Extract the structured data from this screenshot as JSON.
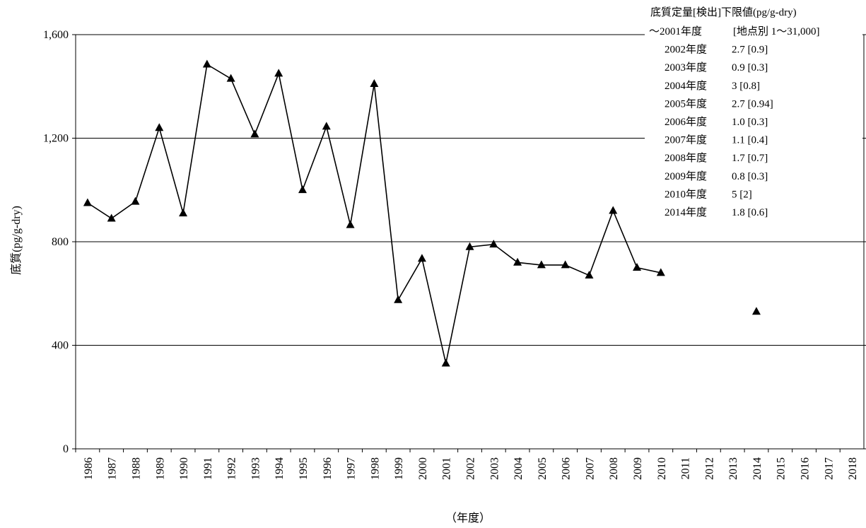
{
  "chart_data": {
    "type": "line",
    "title": "",
    "xlabel": "（年度）",
    "ylabel": "底質(pg/g-dry)",
    "ylim": [
      0,
      1600
    ],
    "yticks": [
      0,
      400,
      800,
      1200,
      1600
    ],
    "ytick_labels": [
      "0",
      "400",
      "800",
      "1,200",
      "1,600"
    ],
    "grid": "horizontal",
    "categories": [
      "1986",
      "1987",
      "1988",
      "1989",
      "1990",
      "1991",
      "1992",
      "1993",
      "1994",
      "1995",
      "1996",
      "1997",
      "1998",
      "1999",
      "2000",
      "2001",
      "2002",
      "2003",
      "2004",
      "2005",
      "2006",
      "2007",
      "2008",
      "2009",
      "2010",
      "2011",
      "2012",
      "2013",
      "2014",
      "2015",
      "2016",
      "2017",
      "2018"
    ],
    "series": [
      {
        "marker": "triangle",
        "color": "#000000",
        "values": [
          950,
          890,
          955,
          1240,
          910,
          1485,
          1430,
          1215,
          1450,
          1000,
          1245,
          865,
          1410,
          575,
          735,
          330,
          780,
          790,
          720,
          710,
          710,
          670,
          920,
          700,
          680,
          null,
          null,
          null,
          530,
          null,
          null,
          null,
          null
        ]
      }
    ],
    "legend": {
      "position": "top-right",
      "title": "底質定量[検出]下限値(pg/g-dry)",
      "entries": [
        {
          "year": "～2001年度",
          "value": "[地点別 1～31,000]"
        },
        {
          "year": "2002年度",
          "value": "2.7 [0.9]"
        },
        {
          "year": "2003年度",
          "value": "0.9 [0.3]"
        },
        {
          "year": "2004年度",
          "value": "3 [0.8]"
        },
        {
          "year": "2005年度",
          "value": "2.7 [0.94]"
        },
        {
          "year": "2006年度",
          "value": "1.0 [0.3]"
        },
        {
          "year": "2007年度",
          "value": "1.1 [0.4]"
        },
        {
          "year": "2008年度",
          "value": "1.7 [0.7]"
        },
        {
          "year": "2009年度",
          "value": "0.8 [0.3]"
        },
        {
          "year": "2010年度",
          "value": "5 [2]"
        },
        {
          "year": "2014年度",
          "value": "1.8 [0.6]"
        }
      ]
    }
  }
}
